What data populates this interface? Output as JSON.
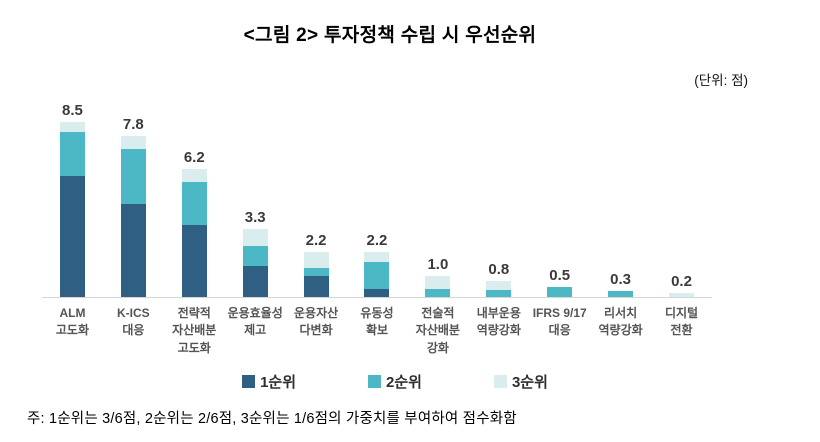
{
  "title": "<그림 2>  투자정책 수립 시 우선순위",
  "unit_label": "(단위:  점)",
  "note": "주: 1순위는  3/6점,  2순위는  2/6점,  3순위는  1/6점의  가중치를  부여하여  점수화함",
  "colors": {
    "rank1": "#2F6083",
    "rank2": "#4CB8C5",
    "rank3": "#D9EDEF",
    "axis_line": "#D6D6D6"
  },
  "chart_data": {
    "type": "bar",
    "stacked": true,
    "grid": false,
    "legend_position": "bottom",
    "title": "<그림 2> 투자정책 수립 시 우선순위",
    "xlabel": "",
    "ylabel": "점",
    "ylim": [
      0,
      9
    ],
    "categories": [
      "ALM\n고도화",
      "K-ICS\n대응",
      "전략적\n자산배분\n고도화",
      "운용효율성\n제고",
      "운용자산\n다변화",
      "유동성\n확보",
      "전술적\n자산배분\n강화",
      "내부운용\n역량강화",
      "IFRS 9/17\n대응",
      "리서치\n역량강화",
      "디지털\n전환"
    ],
    "totals": [
      "8.5",
      "7.8",
      "6.2",
      "3.3",
      "2.2",
      "2.2",
      "1.0",
      "0.8",
      "0.5",
      "0.3",
      "0.2"
    ],
    "series": [
      {
        "name": "1순위",
        "color": "#2F6083",
        "values": [
          5.9,
          4.5,
          3.5,
          1.5,
          1.0,
          0.4,
          0,
          0,
          0,
          0,
          0
        ]
      },
      {
        "name": "2순위",
        "color": "#4CB8C5",
        "values": [
          2.1,
          2.7,
          2.1,
          1.0,
          0.4,
          1.3,
          0.4,
          0.35,
          0.5,
          0.3,
          0
        ]
      },
      {
        "name": "3순위",
        "color": "#D9EDEF",
        "values": [
          0.5,
          0.6,
          0.6,
          0.8,
          0.8,
          0.5,
          0.6,
          0.45,
          0,
          0,
          0.2
        ]
      }
    ]
  }
}
